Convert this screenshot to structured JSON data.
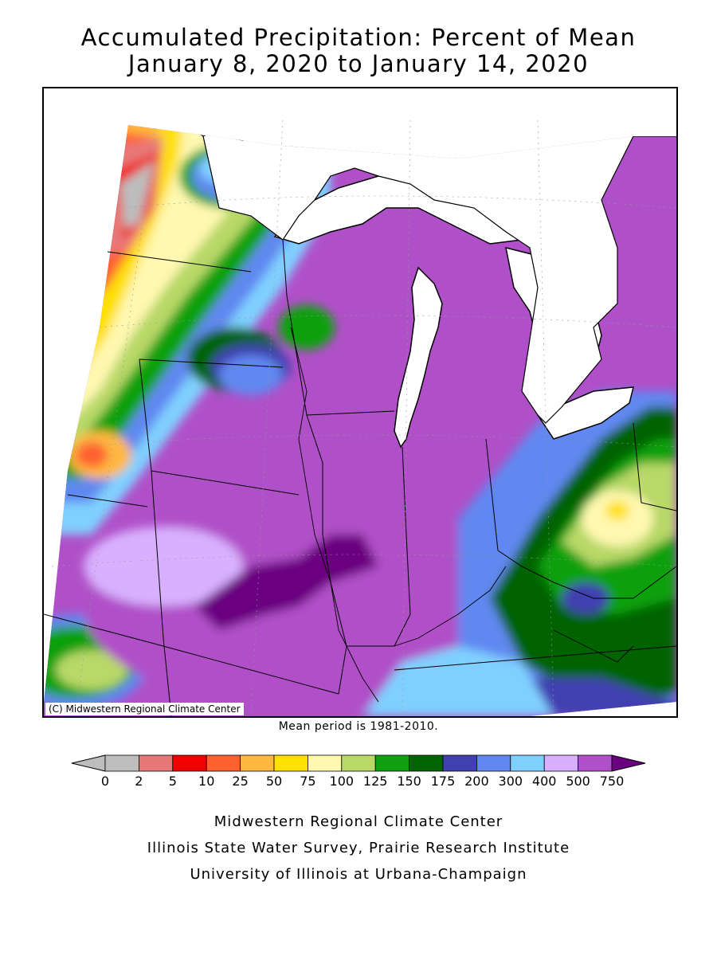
{
  "title": {
    "line1": "Accumulated Precipitation: Percent of Mean",
    "line2": "January 8, 2020 to January 14, 2020"
  },
  "map": {
    "copyright": "(C) Midwestern Regional Climate Center",
    "mean_period": "Mean period is 1981-2010."
  },
  "legend": {
    "low_extension_color": "#bdbdbd",
    "high_extension_color": "#6a0080",
    "bins": [
      {
        "color": "#bdbdbd"
      },
      {
        "color": "#e87878"
      },
      {
        "color": "#f00000"
      },
      {
        "color": "#ff6030"
      },
      {
        "color": "#ffb840"
      },
      {
        "color": "#ffe000"
      },
      {
        "color": "#fff8b0"
      },
      {
        "color": "#b8d868"
      },
      {
        "color": "#10a010"
      },
      {
        "color": "#006400"
      },
      {
        "color": "#4040b0"
      },
      {
        "color": "#6088f0"
      },
      {
        "color": "#80d0ff"
      },
      {
        "color": "#d8b0ff"
      },
      {
        "color": "#b050c8"
      }
    ],
    "tick_labels": [
      "0",
      "2",
      "5",
      "10",
      "25",
      "50",
      "75",
      "100",
      "125",
      "150",
      "175",
      "200",
      "300",
      "400",
      "500",
      "750"
    ]
  },
  "credits": {
    "line1": "Midwestern Regional Climate Center",
    "line2": "Illinois State Water Survey, Prairie Research Institute",
    "line3": "University of Illinois at Urbana-Champaign"
  }
}
